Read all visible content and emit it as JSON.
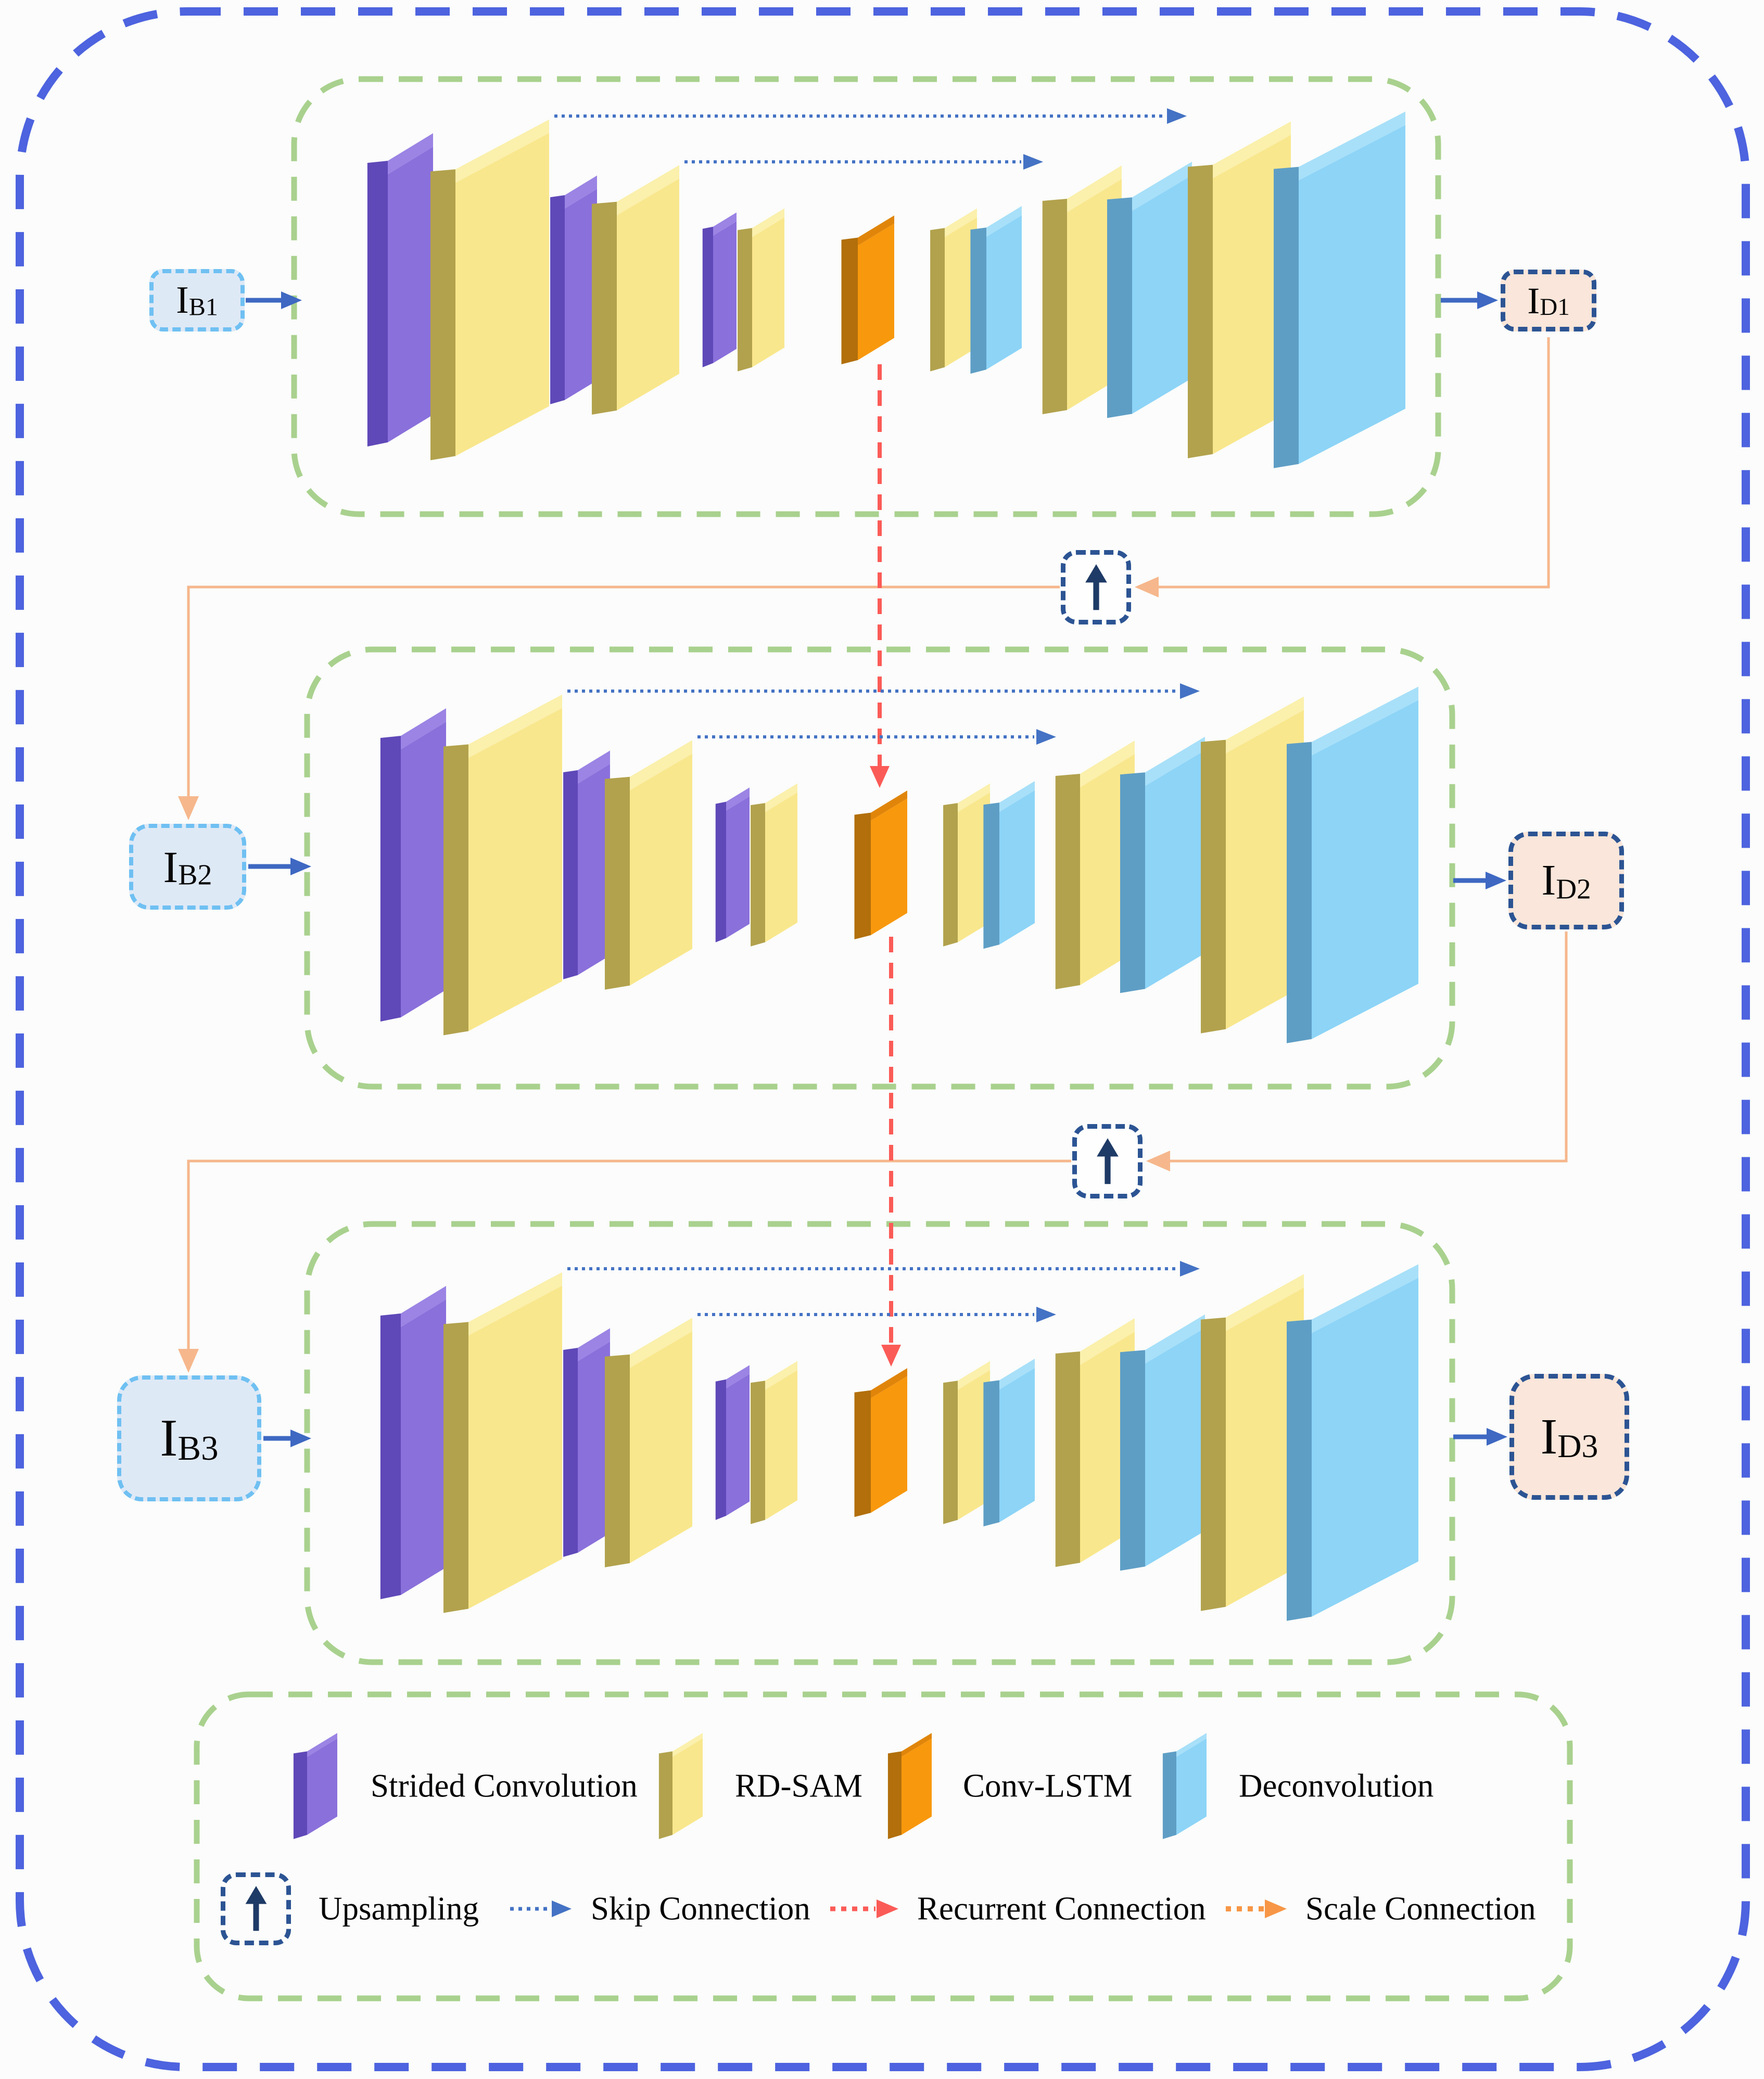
{
  "stages": [
    {
      "id": "scale-1",
      "input": {
        "base": "I",
        "sub": "B1"
      },
      "output": {
        "base": "I",
        "sub": "D1"
      },
      "blocks": [
        "strided-conv",
        "rd-sam",
        "strided-conv",
        "rd-sam",
        "strided-conv",
        "rd-sam",
        "conv-lstm",
        "rd-sam",
        "deconv",
        "rd-sam",
        "deconv",
        "rd-sam",
        "deconv"
      ]
    },
    {
      "id": "scale-2",
      "input": {
        "base": "I",
        "sub": "B2"
      },
      "output": {
        "base": "I",
        "sub": "D2"
      },
      "blocks": [
        "strided-conv",
        "rd-sam",
        "strided-conv",
        "rd-sam",
        "strided-conv",
        "rd-sam",
        "conv-lstm",
        "rd-sam",
        "deconv",
        "rd-sam",
        "deconv",
        "rd-sam",
        "deconv"
      ]
    },
    {
      "id": "scale-3",
      "input": {
        "base": "I",
        "sub": "B3"
      },
      "output": {
        "base": "I",
        "sub": "D3"
      },
      "blocks": [
        "strided-conv",
        "rd-sam",
        "strided-conv",
        "rd-sam",
        "strided-conv",
        "rd-sam",
        "conv-lstm",
        "rd-sam",
        "deconv",
        "rd-sam",
        "deconv",
        "rd-sam",
        "deconv"
      ]
    }
  ],
  "upsampling_glyph": "up-arrow",
  "legend": {
    "blocks": [
      {
        "type": "strided-conv",
        "label": "Strided Convolution"
      },
      {
        "type": "rd-sam",
        "label": "RD-SAM"
      },
      {
        "type": "conv-lstm",
        "label": "Conv-LSTM"
      },
      {
        "type": "deconv",
        "label": "Deconvolution"
      }
    ],
    "connections": [
      {
        "type": "upsampling",
        "label": "Upsampling"
      },
      {
        "type": "skip",
        "label": "Skip Connection"
      },
      {
        "type": "recurrent",
        "label": "Recurrent Connection"
      },
      {
        "type": "scale",
        "label": "Scale Connection"
      }
    ]
  },
  "colors": {
    "background": "#FBFCFB",
    "outer_border": "#4D63DF",
    "stage_border": "#A9D18E",
    "skip_line": "#4472C4",
    "recurrent_line": "#FB5B57",
    "scale_line": "#F6B78C",
    "scale_legend_arrow": "#F79646",
    "io_arrow": "#3E68C2",
    "input_fill": "#DEE9F6",
    "input_border": "#6FC0F2",
    "output_fill": "#FAE6DA",
    "output_border": "#2C5493",
    "upsample_glyph": "#1E3A66",
    "blocks": {
      "strided-conv": {
        "front": "#8A70DB",
        "side": "#5F48B8",
        "top": "#9B84E4"
      },
      "rd-sam": {
        "front": "#F9E78D",
        "side": "#B2A24D",
        "top": "#FBF0AC"
      },
      "conv-lstm": {
        "front": "#F8980D",
        "side": "#B26F0B",
        "top": "#E0850A"
      },
      "deconv": {
        "front": "#8DD4F7",
        "side": "#5E9EC5",
        "top": "#A8E0F9"
      }
    }
  }
}
